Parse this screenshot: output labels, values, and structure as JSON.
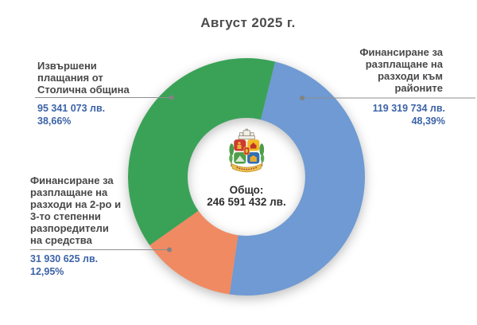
{
  "title": "Август 2025 г.",
  "chart_data": {
    "type": "pie",
    "subtype": "donut",
    "title": "Август 2025 г.",
    "start_angle_deg": 14,
    "direction": "clockwise",
    "legend_position": "callouts",
    "grid": false,
    "center": {
      "label": "Общо:",
      "value": 246591432,
      "value_text": "246 591 432 лв."
    },
    "segments": [
      {
        "name": "districts",
        "label": "Финансиране за разплащане на разходи към районите",
        "label_lines": [
          "Финансиране за",
          "разплащане на",
          "разходи към",
          "районите"
        ],
        "value": 119319734,
        "value_text": "119 319 734 лв.",
        "percent": 48.39,
        "percent_text": "48,39%",
        "color": "#6f9ad3"
      },
      {
        "name": "secondary-spenders",
        "label": "Финансиране за разплащане на разходи на 2-ро и 3-то степенни разпоредители на средства",
        "label_lines": [
          "Финансиране за",
          "разплащане на",
          "разходи на 2-ро и",
          "3-то степенни",
          "разпоредители",
          "на средства"
        ],
        "value": 31930625,
        "value_text": "31 930 625 лв.",
        "percent": 12.95,
        "percent_text": "12,95%",
        "color": "#f08a62"
      },
      {
        "name": "sofia-payments",
        "label": "Извършени плащания от Столична община",
        "label_lines": [
          "Извършени",
          "плащания от",
          "Столична община"
        ],
        "value": 95341073,
        "value_text": "95 341 073 лв.",
        "percent": 38.66,
        "percent_text": "38,66%",
        "color": "#3aa257"
      }
    ],
    "colors": {
      "heading_text": "#48484a",
      "value_text": "#3c63a7",
      "leader_line": "#8f8f8f"
    }
  },
  "emblem": {
    "name": "Герб на Столична община"
  }
}
